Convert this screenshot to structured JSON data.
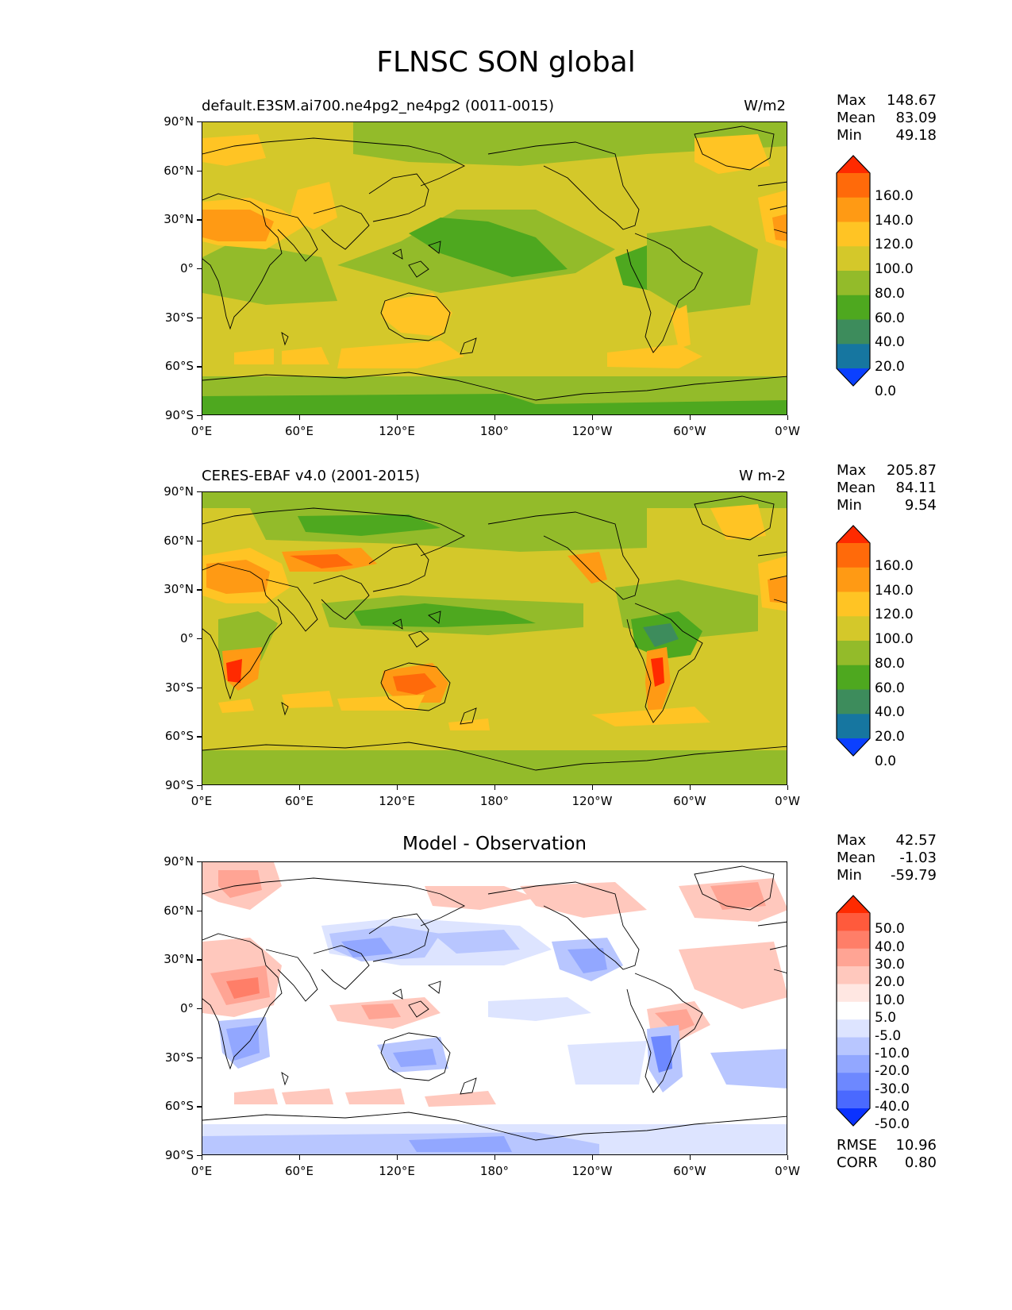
{
  "figure": {
    "title": "FLNSC SON global"
  },
  "x_ticks": [
    "0°E",
    "60°E",
    "120°E",
    "180°",
    "120°W",
    "60°W",
    "0°W"
  ],
  "y_ticks": [
    "90°N",
    "60°N",
    "30°N",
    "0°",
    "30°S",
    "60°S",
    "90°S"
  ],
  "panels": [
    {
      "title_left": "default.E3SM.ai700.ne4pg2_ne4pg2 (0011-0015)",
      "title_right": "W/m2",
      "center_title": "",
      "stats": [
        {
          "label": "Max",
          "value": "148.67"
        },
        {
          "label": "Mean",
          "value": "83.09"
        },
        {
          "label": "Min",
          "value": "49.18"
        }
      ],
      "colorbar": {
        "labels": [
          "160.0",
          "140.0",
          "120.0",
          "100.0",
          "80.0",
          "60.0",
          "40.0",
          "20.0",
          "0.0"
        ],
        "colors": [
          "#ff2a00",
          "#ff6a0a",
          "#ff9a14",
          "#ffc424",
          "#d4c82a",
          "#93bb2a",
          "#4ea81f",
          "#3d8c5c",
          "#1676a0",
          "#0b40ff"
        ]
      }
    },
    {
      "title_left": "CERES-EBAF v4.0 (2001-2015)",
      "title_right": "W m-2",
      "center_title": "",
      "stats": [
        {
          "label": "Max",
          "value": "205.87"
        },
        {
          "label": "Mean",
          "value": "84.11"
        },
        {
          "label": "Min",
          "value": "9.54"
        }
      ],
      "colorbar": {
        "labels": [
          "160.0",
          "140.0",
          "120.0",
          "100.0",
          "80.0",
          "60.0",
          "40.0",
          "20.0",
          "0.0"
        ],
        "colors": [
          "#ff2a00",
          "#ff6a0a",
          "#ff9a14",
          "#ffc424",
          "#d4c82a",
          "#93bb2a",
          "#4ea81f",
          "#3d8c5c",
          "#1676a0",
          "#0b40ff"
        ]
      }
    },
    {
      "title_left": "",
      "title_right": "",
      "center_title": "Model - Observation",
      "stats": [
        {
          "label": "Max",
          "value": "42.57"
        },
        {
          "label": "Mean",
          "value": "-1.03"
        },
        {
          "label": "Min",
          "value": "-59.79"
        }
      ],
      "extra_stats": [
        {
          "label": "RMSE",
          "value": "10.96"
        },
        {
          "label": "CORR",
          "value": "0.80"
        }
      ],
      "colorbar": {
        "labels": [
          "50.0",
          "40.0",
          "30.0",
          "20.0",
          "10.0",
          "5.0",
          "-5.0",
          "-10.0",
          "-20.0",
          "-30.0",
          "-40.0",
          "-50.0"
        ],
        "colors": [
          "#ff2a00",
          "#ff5a3c",
          "#ff7e68",
          "#ffa494",
          "#ffc8bd",
          "#ffe7e2",
          "#ffffff",
          "#dde4ff",
          "#b8c6ff",
          "#92a7ff",
          "#6d88ff",
          "#4a69ff",
          "#0b32ff"
        ]
      }
    }
  ],
  "colors": {
    "model_base": "#d4c82a",
    "green_light": "#93bb2a",
    "green_mid": "#4ea81f",
    "yellow": "#ffc424",
    "orange": "#ff9a14",
    "orange_dark": "#ff6a0a",
    "red": "#ff2a00",
    "teal": "#3d8c5c",
    "diff_white": "#ffffff"
  }
}
